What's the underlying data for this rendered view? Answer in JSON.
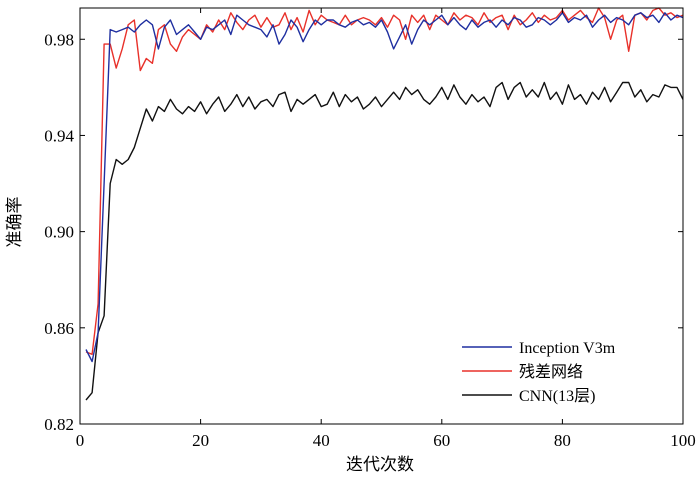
{
  "chart_data": {
    "type": "line",
    "xlabel": "迭代次数",
    "ylabel": "准确率",
    "xlim": [
      0,
      100
    ],
    "ylim": [
      0.82,
      0.993
    ],
    "xticks": [
      0,
      20,
      40,
      60,
      80,
      100
    ],
    "yticks": [
      0.82,
      0.86,
      0.9,
      0.94,
      0.98
    ],
    "ytick_labels": [
      "0.82",
      "0.86",
      "0.90",
      "0.94",
      "0.98"
    ],
    "grid": false,
    "legend_position": "bottom-right",
    "series": [
      {
        "name": "Inception V3m",
        "color": "#1f2fa0",
        "x": [
          1,
          2,
          3,
          4,
          5,
          6,
          7,
          8,
          9,
          10,
          11,
          12,
          13,
          14,
          15,
          16,
          17,
          18,
          19,
          20,
          21,
          22,
          23,
          24,
          25,
          26,
          27,
          28,
          29,
          30,
          31,
          32,
          33,
          34,
          35,
          36,
          37,
          38,
          39,
          40,
          41,
          42,
          43,
          44,
          45,
          46,
          47,
          48,
          49,
          50,
          51,
          52,
          53,
          54,
          55,
          56,
          57,
          58,
          59,
          60,
          61,
          62,
          63,
          64,
          65,
          66,
          67,
          68,
          69,
          70,
          71,
          72,
          73,
          74,
          75,
          76,
          77,
          78,
          79,
          80,
          81,
          82,
          83,
          84,
          85,
          86,
          87,
          88,
          89,
          90,
          91,
          92,
          93,
          94,
          95,
          96,
          97,
          98,
          99,
          100
        ],
        "values": [
          0.851,
          0.846,
          0.858,
          0.92,
          0.984,
          0.983,
          0.984,
          0.985,
          0.983,
          0.986,
          0.988,
          0.986,
          0.976,
          0.985,
          0.988,
          0.982,
          0.984,
          0.986,
          0.983,
          0.98,
          0.985,
          0.984,
          0.986,
          0.988,
          0.982,
          0.99,
          0.988,
          0.986,
          0.985,
          0.984,
          0.981,
          0.986,
          0.978,
          0.982,
          0.988,
          0.985,
          0.979,
          0.984,
          0.988,
          0.986,
          0.988,
          0.988,
          0.986,
          0.985,
          0.987,
          0.988,
          0.986,
          0.987,
          0.985,
          0.988,
          0.983,
          0.976,
          0.981,
          0.986,
          0.978,
          0.984,
          0.988,
          0.986,
          0.988,
          0.99,
          0.986,
          0.989,
          0.986,
          0.984,
          0.988,
          0.985,
          0.987,
          0.988,
          0.985,
          0.988,
          0.986,
          0.989,
          0.988,
          0.985,
          0.986,
          0.989,
          0.988,
          0.986,
          0.988,
          0.991,
          0.987,
          0.989,
          0.988,
          0.99,
          0.985,
          0.988,
          0.99,
          0.987,
          0.989,
          0.988,
          0.986,
          0.99,
          0.991,
          0.989,
          0.99,
          0.987,
          0.991,
          0.988,
          0.99,
          0.989
        ]
      },
      {
        "name": "残差网络",
        "color": "#e8312a",
        "x": [
          1,
          2,
          3,
          4,
          5,
          6,
          7,
          8,
          9,
          10,
          11,
          12,
          13,
          14,
          15,
          16,
          17,
          18,
          19,
          20,
          21,
          22,
          23,
          24,
          25,
          26,
          27,
          28,
          29,
          30,
          31,
          32,
          33,
          34,
          35,
          36,
          37,
          38,
          39,
          40,
          41,
          42,
          43,
          44,
          45,
          46,
          47,
          48,
          49,
          50,
          51,
          52,
          53,
          54,
          55,
          56,
          57,
          58,
          59,
          60,
          61,
          62,
          63,
          64,
          65,
          66,
          67,
          68,
          69,
          70,
          71,
          72,
          73,
          74,
          75,
          76,
          77,
          78,
          79,
          80,
          81,
          82,
          83,
          84,
          85,
          86,
          87,
          88,
          89,
          90,
          91,
          92,
          93,
          94,
          95,
          96,
          97,
          98,
          99,
          100
        ],
        "values": [
          0.85,
          0.849,
          0.87,
          0.978,
          0.978,
          0.968,
          0.976,
          0.986,
          0.988,
          0.967,
          0.972,
          0.97,
          0.984,
          0.986,
          0.978,
          0.975,
          0.981,
          0.984,
          0.982,
          0.98,
          0.986,
          0.983,
          0.988,
          0.984,
          0.991,
          0.987,
          0.984,
          0.988,
          0.99,
          0.985,
          0.989,
          0.985,
          0.986,
          0.991,
          0.984,
          0.989,
          0.983,
          0.992,
          0.986,
          0.99,
          0.988,
          0.987,
          0.986,
          0.99,
          0.986,
          0.988,
          0.989,
          0.988,
          0.986,
          0.989,
          0.985,
          0.99,
          0.988,
          0.98,
          0.99,
          0.987,
          0.99,
          0.984,
          0.99,
          0.988,
          0.986,
          0.991,
          0.988,
          0.99,
          0.989,
          0.986,
          0.991,
          0.987,
          0.989,
          0.99,
          0.984,
          0.99,
          0.986,
          0.988,
          0.991,
          0.987,
          0.99,
          0.988,
          0.989,
          0.992,
          0.988,
          0.99,
          0.992,
          0.989,
          0.987,
          0.993,
          0.989,
          0.98,
          0.988,
          0.99,
          0.975,
          0.99,
          0.991,
          0.988,
          0.992,
          0.993,
          0.99,
          0.991,
          0.989,
          0.99
        ]
      },
      {
        "name": "CNN(13层)",
        "color": "#111111",
        "x": [
          1,
          2,
          3,
          4,
          5,
          6,
          7,
          8,
          9,
          10,
          11,
          12,
          13,
          14,
          15,
          16,
          17,
          18,
          19,
          20,
          21,
          22,
          23,
          24,
          25,
          26,
          27,
          28,
          29,
          30,
          31,
          32,
          33,
          34,
          35,
          36,
          37,
          38,
          39,
          40,
          41,
          42,
          43,
          44,
          45,
          46,
          47,
          48,
          49,
          50,
          51,
          52,
          53,
          54,
          55,
          56,
          57,
          58,
          59,
          60,
          61,
          62,
          63,
          64,
          65,
          66,
          67,
          68,
          69,
          70,
          71,
          72,
          73,
          74,
          75,
          76,
          77,
          78,
          79,
          80,
          81,
          82,
          83,
          84,
          85,
          86,
          87,
          88,
          89,
          90,
          91,
          92,
          93,
          94,
          95,
          96,
          97,
          98,
          99,
          100
        ],
        "values": [
          0.83,
          0.833,
          0.858,
          0.865,
          0.92,
          0.93,
          0.928,
          0.93,
          0.935,
          0.943,
          0.951,
          0.946,
          0.952,
          0.95,
          0.955,
          0.951,
          0.949,
          0.952,
          0.95,
          0.954,
          0.949,
          0.953,
          0.956,
          0.95,
          0.953,
          0.957,
          0.952,
          0.956,
          0.951,
          0.954,
          0.955,
          0.952,
          0.957,
          0.958,
          0.95,
          0.955,
          0.953,
          0.955,
          0.957,
          0.952,
          0.953,
          0.958,
          0.952,
          0.957,
          0.954,
          0.956,
          0.951,
          0.953,
          0.956,
          0.952,
          0.955,
          0.958,
          0.955,
          0.96,
          0.957,
          0.959,
          0.955,
          0.953,
          0.956,
          0.96,
          0.955,
          0.961,
          0.956,
          0.953,
          0.957,
          0.954,
          0.956,
          0.952,
          0.96,
          0.962,
          0.955,
          0.96,
          0.962,
          0.956,
          0.959,
          0.956,
          0.962,
          0.955,
          0.958,
          0.953,
          0.961,
          0.955,
          0.957,
          0.953,
          0.958,
          0.955,
          0.96,
          0.954,
          0.958,
          0.962,
          0.962,
          0.956,
          0.959,
          0.954,
          0.957,
          0.956,
          0.961,
          0.96,
          0.96,
          0.955
        ]
      }
    ]
  }
}
